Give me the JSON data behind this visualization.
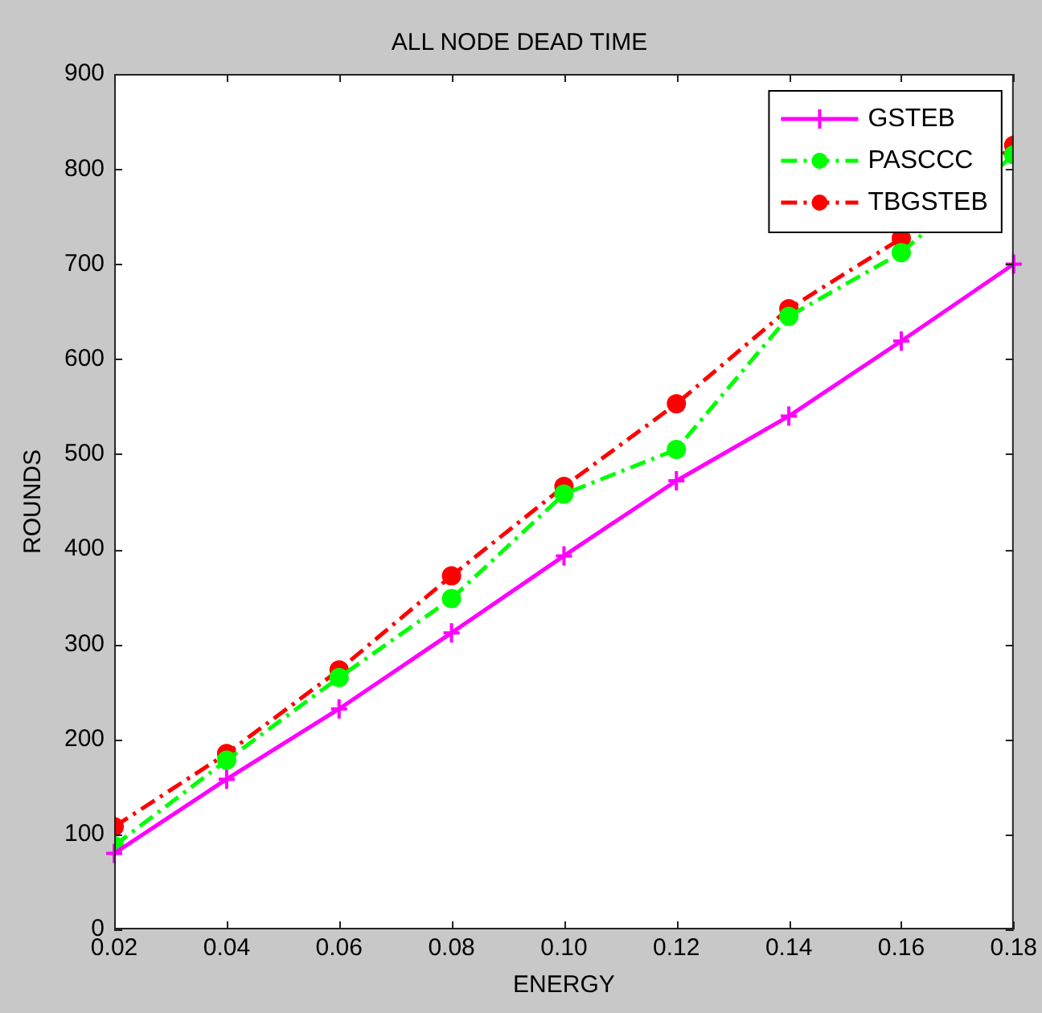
{
  "chart_data": {
    "type": "line",
    "title": "ALL NODE DEAD TIME",
    "xlabel": "ENERGY",
    "ylabel": "ROUNDS",
    "x": [
      0.02,
      0.04,
      0.06,
      0.08,
      0.1,
      0.12,
      0.14,
      0.16,
      0.18
    ],
    "series": [
      {
        "name": "GSTEB",
        "color": "#ff00ff",
        "marker": "cross",
        "line_style": "solid",
        "values": [
          80,
          158,
          232,
          312,
          393,
          472,
          540,
          619,
          700
        ]
      },
      {
        "name": "PASCCC",
        "color": "#00ff00",
        "marker": "circle",
        "line_style": "dashed",
        "values": [
          88,
          178,
          265,
          348,
          458,
          505,
          645,
          712,
          815
        ]
      },
      {
        "name": "TBGSTEB",
        "color": "#ff0000",
        "marker": "circle",
        "line_style": "dashed",
        "values": [
          108,
          185,
          273,
          372,
          466,
          553,
          653,
          727,
          825
        ]
      }
    ],
    "xlim": [
      0.02,
      0.18
    ],
    "xticks": [
      {
        "value": 0.02,
        "label": "0.02"
      },
      {
        "value": 0.04,
        "label": "0.04"
      },
      {
        "value": 0.06,
        "label": "0.06"
      },
      {
        "value": 0.08,
        "label": "0.08"
      },
      {
        "value": 0.1,
        "label": "0.10"
      },
      {
        "value": 0.12,
        "label": "0.12"
      },
      {
        "value": 0.14,
        "label": "0.14"
      },
      {
        "value": 0.16,
        "label": "0.16"
      },
      {
        "value": 0.18,
        "label": "0.18"
      }
    ],
    "ylim": [
      0,
      900
    ],
    "yticks": [
      0,
      100,
      200,
      300,
      400,
      500,
      600,
      700,
      800,
      900
    ],
    "grid": false,
    "legend": "top right"
  }
}
